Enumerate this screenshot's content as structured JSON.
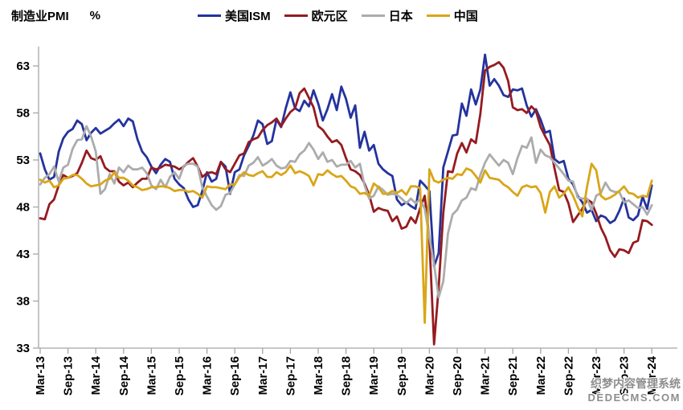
{
  "header": {
    "title": "制造业PMI",
    "unit": "%"
  },
  "watermark": {
    "line1": "织梦内容管理系统",
    "line2": "DEDECMS.COM"
  },
  "chart_data": {
    "type": "line",
    "title": "制造业PMI",
    "unit_label": "%",
    "legend_position": "top",
    "grid": false,
    "axis_color": "#a6a6a6",
    "tick_label_color": "#000000",
    "ylim": [
      33,
      63
    ],
    "y_ticks": [
      33,
      38,
      43,
      48,
      53,
      58,
      63
    ],
    "x_start_month": "Mar-13",
    "x_end_month": "Mar-24",
    "x_tick_interval_months": 6,
    "x_tick_labels": [
      "Mar-13",
      "Sep-13",
      "Mar-14",
      "Sep-14",
      "Mar-15",
      "Sep-15",
      "Mar-16",
      "Sep-16",
      "Mar-17",
      "Sep-17",
      "Mar-18",
      "Sep-18",
      "Mar-19",
      "Sep-19",
      "Mar-20",
      "Sep-20",
      "Mar-21",
      "Sep-21",
      "Mar-22",
      "Sep-22",
      "Mar-23",
      "Sep-23",
      "Mar-24"
    ],
    "series": [
      {
        "key": "us-ism",
        "name": "美国ISM",
        "color": "#24339E",
        "values": [
          53.7,
          52.0,
          50.9,
          51.2,
          53.9,
          55.3,
          56.0,
          56.3,
          57.2,
          56.8,
          55.1,
          55.9,
          56.4,
          55.8,
          56.1,
          56.4,
          56.9,
          57.3,
          56.6,
          57.4,
          57.1,
          55.2,
          53.9,
          53.3,
          52.3,
          51.6,
          52.5,
          53.1,
          52.8,
          51.0,
          50.4,
          50.0,
          48.8,
          48.0,
          48.2,
          49.7,
          51.7,
          50.7,
          51.0,
          52.8,
          52.3,
          49.4,
          51.7,
          52.0,
          53.5,
          54.5,
          55.6,
          57.2,
          56.8,
          54.7,
          55.0,
          57.3,
          56.5,
          58.5,
          60.2,
          58.5,
          58.2,
          59.3,
          58.7,
          60.4,
          59.0,
          57.2,
          58.4,
          60.0,
          58.3,
          60.8,
          59.5,
          57.5,
          58.8,
          54.3,
          56.0,
          54.0,
          54.6,
          52.6,
          52.0,
          51.6,
          51.3,
          48.8,
          48.2,
          48.5,
          48.1,
          47.8,
          50.8,
          50.3,
          49.7,
          41.7,
          43.1,
          52.2,
          53.9,
          55.6,
          55.7,
          59.0,
          57.7,
          60.5,
          58.9,
          60.5,
          64.2,
          60.9,
          61.6,
          60.9,
          59.9,
          59.7,
          60.5,
          60.4,
          60.6,
          58.8,
          57.6,
          58.4,
          57.3,
          55.9,
          56.1,
          53.1,
          52.7,
          52.9,
          51.0,
          50.4,
          49.2,
          48.5,
          47.4,
          47.7,
          46.5,
          47.1,
          46.9,
          46.3,
          46.6,
          47.6,
          48.9,
          46.9,
          46.6,
          47.1,
          49.1,
          47.8,
          50.3
        ]
      },
      {
        "key": "eurozone",
        "name": "欧元区",
        "color": "#951B20",
        "values": [
          46.8,
          46.7,
          48.3,
          48.8,
          50.3,
          51.4,
          51.1,
          51.3,
          51.6,
          52.7,
          54.0,
          53.2,
          53.0,
          53.4,
          52.2,
          51.8,
          51.8,
          50.7,
          50.3,
          50.6,
          50.1,
          50.6,
          51.0,
          51.0,
          52.2,
          52.0,
          52.2,
          52.5,
          52.4,
          52.3,
          52.0,
          52.3,
          52.8,
          53.2,
          52.3,
          51.2,
          51.6,
          51.7,
          51.5,
          52.8,
          52.0,
          51.7,
          52.6,
          53.5,
          53.7,
          54.9,
          55.2,
          55.4,
          56.2,
          56.7,
          57.0,
          57.4,
          56.6,
          57.4,
          58.1,
          58.5,
          60.1,
          60.6,
          59.6,
          58.6,
          56.6,
          56.2,
          55.5,
          54.9,
          55.1,
          54.6,
          53.2,
          52.0,
          51.8,
          51.4,
          50.5,
          49.3,
          47.5,
          47.9,
          47.7,
          47.6,
          46.5,
          47.0,
          45.7,
          45.9,
          46.9,
          46.3,
          47.9,
          49.2,
          44.5,
          33.4,
          39.4,
          47.4,
          51.8,
          51.7,
          53.7,
          54.8,
          53.8,
          55.2,
          54.8,
          57.9,
          62.5,
          62.9,
          63.1,
          63.4,
          62.8,
          61.4,
          58.6,
          58.3,
          58.4,
          58.0,
          58.7,
          58.2,
          56.5,
          55.5,
          54.6,
          52.1,
          49.8,
          49.6,
          48.4,
          46.4,
          47.1,
          47.8,
          48.8,
          48.5,
          47.3,
          45.8,
          44.8,
          43.4,
          42.7,
          43.5,
          43.4,
          43.1,
          44.2,
          44.4,
          46.6,
          46.5,
          46.1
        ]
      },
      {
        "key": "japan",
        "name": "日本",
        "color": "#ACACAC",
        "values": [
          50.4,
          51.1,
          51.5,
          52.3,
          50.7,
          52.2,
          52.5,
          54.2,
          55.1,
          55.2,
          56.6,
          55.5,
          53.9,
          49.4,
          49.9,
          51.5,
          50.5,
          52.2,
          51.7,
          52.4,
          52.0,
          52.0,
          52.2,
          51.6,
          50.3,
          49.9,
          50.9,
          50.1,
          51.2,
          51.7,
          51.0,
          52.4,
          52.6,
          52.6,
          52.3,
          50.1,
          49.1,
          48.2,
          47.7,
          48.1,
          49.3,
          49.5,
          50.4,
          51.4,
          51.3,
          52.4,
          52.7,
          53.3,
          52.4,
          52.7,
          53.1,
          52.4,
          52.1,
          52.2,
          52.9,
          52.8,
          53.6,
          54.0,
          54.8,
          54.1,
          53.1,
          53.8,
          52.8,
          53.0,
          52.3,
          52.5,
          52.5,
          52.9,
          52.2,
          52.6,
          50.3,
          48.9,
          49.2,
          50.2,
          49.8,
          49.3,
          49.4,
          49.3,
          48.9,
          48.4,
          48.9,
          48.4,
          48.8,
          47.8,
          44.8,
          41.9,
          38.4,
          40.1,
          45.2,
          47.2,
          47.7,
          48.7,
          49.0,
          50.0,
          49.8,
          51.4,
          52.7,
          53.6,
          53.0,
          52.4,
          53.0,
          52.7,
          51.5,
          53.2,
          54.5,
          54.3,
          55.4,
          52.7,
          54.1,
          53.5,
          53.3,
          52.7,
          52.1,
          51.5,
          50.8,
          50.7,
          49.0,
          48.9,
          48.9,
          47.7,
          49.2,
          49.5,
          50.6,
          49.8,
          49.6,
          49.6,
          48.5,
          48.7,
          48.3,
          47.9,
          48.0,
          47.2,
          48.2
        ]
      },
      {
        "key": "china",
        "name": "中国",
        "color": "#D9A618",
        "values": [
          50.9,
          50.6,
          50.8,
          50.1,
          50.3,
          51.0,
          51.1,
          51.4,
          51.4,
          51.0,
          50.5,
          50.2,
          50.3,
          50.4,
          50.8,
          51.0,
          51.7,
          51.1,
          51.1,
          50.8,
          50.3,
          50.1,
          49.8,
          49.9,
          50.1,
          50.1,
          50.2,
          50.2,
          50.0,
          49.7,
          49.8,
          49.8,
          49.6,
          49.7,
          49.4,
          49.0,
          50.2,
          50.1,
          50.1,
          50.0,
          49.9,
          50.4,
          50.4,
          51.2,
          51.7,
          51.4,
          51.3,
          51.6,
          51.8,
          51.2,
          51.2,
          51.7,
          51.4,
          51.7,
          52.4,
          51.6,
          51.8,
          51.6,
          51.3,
          50.3,
          51.5,
          51.4,
          51.9,
          51.5,
          51.2,
          51.3,
          50.8,
          50.2,
          50.0,
          49.4,
          49.5,
          49.2,
          50.5,
          50.1,
          49.4,
          49.4,
          49.7,
          49.5,
          49.8,
          49.3,
          50.2,
          50.2,
          50.0,
          35.7,
          52.0,
          50.8,
          50.6,
          50.9,
          51.1,
          51.0,
          51.5,
          51.4,
          52.1,
          51.9,
          51.3,
          50.6,
          51.9,
          51.1,
          51.0,
          50.9,
          50.4,
          50.1,
          49.6,
          49.2,
          50.1,
          50.3,
          50.1,
          50.2,
          49.5,
          47.4,
          49.6,
          50.2,
          49.0,
          49.4,
          50.1,
          49.2,
          48.0,
          47.0,
          50.1,
          52.6,
          51.9,
          49.2,
          48.8,
          49.0,
          49.3,
          49.7,
          50.2,
          49.5,
          49.4,
          49.0,
          49.2,
          49.1,
          50.8
        ]
      }
    ]
  }
}
